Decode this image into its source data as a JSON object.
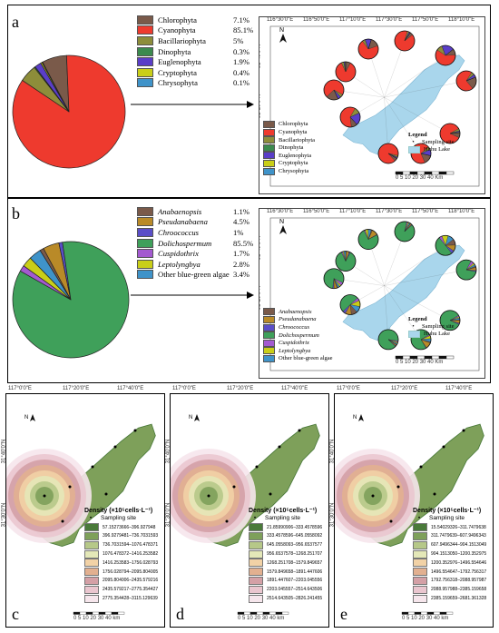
{
  "panel_a": {
    "label": "a",
    "legend": [
      {
        "name": "Chlorophyta",
        "pct": "7.1%",
        "color": "#7a5a4a"
      },
      {
        "name": "Cyanophyta",
        "pct": "85.1%",
        "color": "#ee3a2e"
      },
      {
        "name": "Bacillariophyta",
        "pct": "5%",
        "color": "#8d8d3a"
      },
      {
        "name": "Dinophyta",
        "pct": "0.3%",
        "color": "#3b8a4e"
      },
      {
        "name": "Euglenophyta",
        "pct": "1.9%",
        "color": "#5a3ec8"
      },
      {
        "name": "Cryptophyta",
        "pct": "0.4%",
        "color": "#c9ce18"
      },
      {
        "name": "Chrysophyta",
        "pct": "0.1%",
        "color": "#3f93c9"
      }
    ],
    "map_legend_title": "Legend",
    "sampling_site": "Sampling site",
    "lake": "Huhu Lake",
    "scale": "0 5 10   20   30   40",
    "scale_unit": "Km",
    "top_coords": [
      "116°30'0\"E",
      "116°50'0\"E",
      "117°10'0\"E",
      "117°30'0\"E",
      "117°50'0\"E",
      "118°10'0\"E"
    ],
    "left_coords": [
      "31°40'0\"N",
      "31°20'0\"N",
      "31°0'0\"N"
    ]
  },
  "panel_b": {
    "label": "b",
    "legend": [
      {
        "name": "Anabaenopsis",
        "pct": "1.1%",
        "color": "#7a5a4a"
      },
      {
        "name": "Pseudanabaena",
        "pct": "4.5%",
        "color": "#b98a28"
      },
      {
        "name": "Chroococcus",
        "pct": "1%",
        "color": "#5a4ec8"
      },
      {
        "name": "Dolichospermum",
        "pct": "85.5%",
        "color": "#3fa05a"
      },
      {
        "name": "Cuspidothrix",
        "pct": "1.7%",
        "color": "#a35ad0"
      },
      {
        "name": "Leptolyngbya",
        "pct": "2.8%",
        "color": "#c9ce18"
      },
      {
        "name": "Other blue-green algae",
        "pct": "3.4%",
        "color": "#3f93c9"
      }
    ],
    "map_legend_title": "Legend",
    "sampling_site": "Sampling site",
    "lake": "Huhu Lake",
    "scale": "0 5 10   20   30   40",
    "scale_unit": "Km",
    "top_coords": [
      "116°30'0\"E",
      "116°50'0\"E",
      "117°10'0\"E",
      "117°30'0\"E",
      "117°50'0\"E",
      "118°10'0\"E"
    ],
    "left_coords": [
      "31°40'0\"N",
      "31°20'0\"N",
      "31°0'0\"N"
    ]
  },
  "density_panels": [
    {
      "label": "c",
      "title": "Density (×10⁵cells·L⁻¹)",
      "sampling_site": "Sampling site",
      "top_coords": [
        "117°0'0\"E",
        "117°20'0\"E",
        "117°40'0\"E"
      ],
      "left_coords": [
        "31°40'0\"N",
        "31°30'0\"N"
      ],
      "scale": "0 5 10   20   30   40",
      "unit": "km",
      "classes": [
        "57.15273666–396.927948",
        "396.9279481–736.7031593",
        "736.7031594–1076.478371",
        "1076.478372–1416.253582",
        "1416.253583–1756.028793",
        "1756.028794–2095.804005",
        "2095.804006–2435.579216",
        "2435.579217–2775.354427",
        "2775.354428–3115.129639"
      ]
    },
    {
      "label": "d",
      "title": "Density (×10⁵cells·L⁻¹)",
      "sampling_site": "Sampling site",
      "top_coords": [
        "117°0'0\"E",
        "117°20'0\"E",
        "117°40'0\"E"
      ],
      "left_coords": [
        "31°40'0\"N",
        "31°30'0\"N"
      ],
      "scale": "0 5 10   20   30   40",
      "unit": "km",
      "classes": [
        "21.85990906–333.4578596",
        "333.4578596–645.0558092",
        "645.0558093–956.6537577",
        "956.6537578–1268.251707",
        "1268.251708–1579.849657",
        "1579.849658–1891.447606",
        "1891.447607–2203.045556",
        "2203.045557–2514.643506",
        "2514.643505–2826.241455"
      ]
    },
    {
      "label": "e",
      "title": "Density (×10⁵cells·L⁻¹)",
      "sampling_site": "Sampling site",
      "top_coords": [
        "117°0'0\"E",
        "117°20'0\"E",
        "117°40'0\"E"
      ],
      "left_coords": [
        "31°40'0\"N",
        "31°30'0\"N"
      ],
      "scale": "0 5 10   20   30   40",
      "unit": "km",
      "classes": [
        "15.54029326–311.7479638",
        "311.7479639–607.9496343",
        "607.9496344–904.1513049",
        "904.1513050–1200.352975",
        "1200.352976–1496.554646",
        "1496.554647–1792.756317",
        "1792.756318–2088.957987",
        "2088.957988–2385.159658",
        "2385.159659–2681.361328"
      ]
    }
  ],
  "colors": {
    "lake": "#a9d6ec",
    "density_ramp": [
      "#4a7a3a",
      "#7ea05a",
      "#b6c888",
      "#e4e8b8",
      "#f2d2a6",
      "#e2b090",
      "#d4a0a6",
      "#eac6cf",
      "#f6e6ec"
    ]
  }
}
